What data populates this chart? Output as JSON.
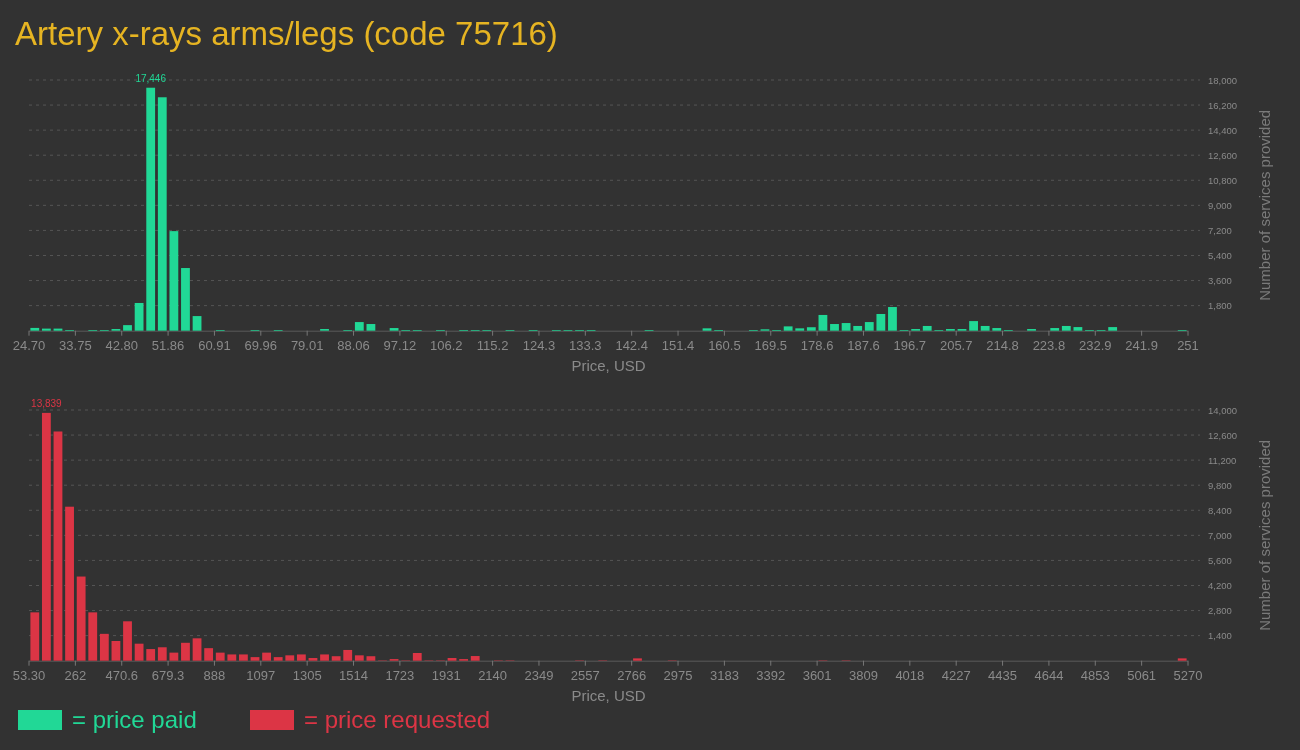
{
  "chart_data": [
    {
      "type": "histogram",
      "title": "Artery x-rays arms/legs (code 75716)",
      "xlabel": "Price, USD",
      "ylabel": "Number of services provided",
      "grid": "y",
      "legend": "bottom left",
      "series": [
        {
          "name": "= price paid",
          "color": "#21d896",
          "values": [
            200,
            150,
            150,
            50,
            0,
            50,
            50,
            120,
            400,
            1990,
            17446,
            16760,
            7150,
            4500,
            1050,
            0,
            50,
            0,
            0,
            50,
            0,
            50,
            0,
            0,
            0,
            120,
            0,
            50,
            620,
            480,
            0,
            190,
            50,
            50,
            0,
            50,
            0,
            50,
            50,
            50,
            0,
            50,
            0,
            50,
            0,
            50,
            50,
            50,
            50,
            0,
            0,
            0,
            0,
            50,
            0,
            0,
            0,
            0,
            170,
            50,
            0,
            0,
            50,
            100,
            50,
            310,
            170,
            250,
            1130,
            480,
            550,
            340,
            620,
            1200,
            1700,
            50,
            120,
            340,
            50,
            120,
            120,
            690,
            340,
            190,
            50,
            0,
            120,
            0,
            190,
            340,
            260,
            50,
            50,
            260,
            0,
            0,
            0,
            0,
            0,
            50
          ],
          "value_labels": [
            null,
            null,
            null,
            null,
            null,
            null,
            null,
            null,
            null,
            null,
            "17,446",
            null,
            null,
            null,
            null,
            null,
            null,
            null,
            null,
            null,
            null,
            null,
            null,
            null,
            null,
            null,
            null,
            null,
            null,
            null,
            null,
            null,
            null,
            null,
            null,
            null,
            null,
            null,
            null,
            null,
            null,
            null,
            null,
            null,
            null,
            null,
            null,
            null,
            null,
            null,
            null,
            null,
            null,
            null,
            null,
            null,
            null,
            null,
            null,
            null,
            null,
            null,
            null,
            null,
            null,
            null,
            null,
            null,
            null,
            null,
            null,
            null,
            null,
            null,
            null,
            null,
            null,
            null,
            null,
            null,
            null,
            null,
            null,
            null,
            null,
            null,
            null,
            null,
            null,
            null,
            null,
            null,
            null,
            null,
            null,
            null,
            null,
            null,
            null,
            null
          ]
        }
      ],
      "bins": [
        24.7,
        26.963,
        29.226,
        31.489,
        33.752,
        36.015,
        38.278,
        40.541,
        42.804,
        45.067,
        47.33,
        49.593,
        51.856,
        54.119,
        56.382,
        58.645,
        60.908,
        63.171,
        65.434,
        67.697,
        69.96,
        72.223,
        74.486,
        76.749,
        79.012,
        81.275,
        83.538,
        85.801,
        88.064,
        90.327,
        92.59,
        94.853,
        97.116,
        99.379,
        101.642,
        103.905,
        106.168,
        108.431,
        110.694,
        112.957,
        115.22,
        117.483,
        119.746,
        122.009,
        124.272,
        126.535,
        128.798,
        131.061,
        133.324,
        135.587,
        137.85,
        140.113,
        142.376,
        144.639,
        146.902,
        149.165,
        151.428,
        153.691,
        155.954,
        158.217,
        160.48,
        162.743,
        165.006,
        167.269,
        169.532,
        171.795,
        174.058,
        176.321,
        178.584,
        180.847,
        183.11,
        185.373,
        187.636,
        189.899,
        192.162,
        194.425,
        196.688,
        198.951,
        201.214,
        203.477,
        205.74,
        208.003,
        210.266,
        212.529,
        214.792,
        217.055,
        219.318,
        221.581,
        223.844,
        226.107,
        228.37,
        230.633,
        232.896,
        235.159,
        237.422,
        239.685,
        241.948,
        244.211,
        246.474,
        248.737,
        251
      ],
      "xlim": [
        24.7,
        251
      ],
      "xticks": [
        {
          "value": 24.7,
          "label": "24.70"
        },
        {
          "value": 33.752,
          "label": "33.75"
        },
        {
          "value": 42.804,
          "label": "42.80"
        },
        {
          "value": 51.856,
          "label": "51.86"
        },
        {
          "value": 60.908,
          "label": "60.91"
        },
        {
          "value": 69.96,
          "label": "69.96"
        },
        {
          "value": 79.012,
          "label": "79.01"
        },
        {
          "value": 88.064,
          "label": "88.06"
        },
        {
          "value": 97.116,
          "label": "97.12"
        },
        {
          "value": 106.168,
          "label": "106.2"
        },
        {
          "value": 115.22,
          "label": "115.2"
        },
        {
          "value": 124.272,
          "label": "124.3"
        },
        {
          "value": 133.324,
          "label": "133.3"
        },
        {
          "value": 142.376,
          "label": "142.4"
        },
        {
          "value": 151.428,
          "label": "151.4"
        },
        {
          "value": 160.48,
          "label": "160.5"
        },
        {
          "value": 169.532,
          "label": "169.5"
        },
        {
          "value": 178.584,
          "label": "178.6"
        },
        {
          "value": 187.636,
          "label": "187.6"
        },
        {
          "value": 196.688,
          "label": "196.7"
        },
        {
          "value": 205.74,
          "label": "205.7"
        },
        {
          "value": 214.792,
          "label": "214.8"
        },
        {
          "value": 223.844,
          "label": "223.8"
        },
        {
          "value": 232.896,
          "label": "232.9"
        },
        {
          "value": 241.948,
          "label": "241.9"
        },
        251
      ],
      "ylim": [
        0,
        18000
      ],
      "yticks": [
        {
          "value": 1800,
          "label": "1,800"
        },
        {
          "value": 3600,
          "label": "3,600"
        },
        {
          "value": 5400,
          "label": "5,400"
        },
        {
          "value": 7200,
          "label": "7,200"
        },
        {
          "value": 9000,
          "label": "9,000"
        },
        {
          "value": 10800,
          "label": "10,800"
        },
        {
          "value": 12600,
          "label": "12,600"
        },
        {
          "value": 14400,
          "label": "14,400"
        },
        {
          "value": 16200,
          "label": "16,200"
        },
        {
          "value": 18000,
          "label": "18,000"
        }
      ]
    },
    {
      "type": "histogram",
      "xlabel": "Price, USD",
      "ylabel": "Number of services provided",
      "grid": "y",
      "legend": "bottom left",
      "series": [
        {
          "name": "= price requested",
          "color": "#dc3545",
          "values": [
            2700,
            13839,
            12800,
            8600,
            4700,
            2700,
            1500,
            1100,
            2200,
            950,
            650,
            750,
            450,
            1000,
            1250,
            700,
            450,
            350,
            350,
            200,
            450,
            200,
            300,
            350,
            150,
            350,
            250,
            600,
            300,
            250,
            20,
            90,
            20,
            430,
            20,
            20,
            150,
            90,
            260,
            0,
            20,
            20,
            0,
            0,
            0,
            0,
            0,
            20,
            0,
            20,
            0,
            0,
            130,
            0,
            0,
            20,
            0,
            0,
            0,
            0,
            0,
            0,
            0,
            0,
            0,
            0,
            0,
            0,
            20,
            0,
            20,
            0,
            0,
            0,
            0,
            0,
            0,
            0,
            0,
            0,
            0,
            0,
            0,
            0,
            0,
            0,
            0,
            0,
            0,
            0,
            0,
            0,
            0,
            0,
            0,
            0,
            0,
            0,
            0,
            130
          ],
          "value_labels": [
            null,
            "13,839",
            null,
            null,
            null,
            null,
            null,
            null,
            null,
            null,
            null,
            null,
            null,
            null,
            null,
            null,
            null,
            null,
            null,
            null,
            null,
            null,
            null,
            null,
            null,
            null,
            null,
            null,
            null,
            null,
            null,
            null,
            null,
            null,
            null,
            null,
            null,
            null,
            null,
            null,
            null,
            null,
            null,
            null,
            null,
            null,
            null,
            null,
            null,
            null,
            null,
            null,
            null,
            null,
            null,
            null,
            null,
            null,
            null,
            null,
            null,
            null,
            null,
            null,
            null,
            null,
            null,
            null,
            null,
            null,
            null,
            null,
            null,
            null,
            null,
            null,
            null,
            null,
            null,
            null,
            null,
            null,
            null,
            null,
            null,
            null,
            null,
            null,
            null,
            null,
            null,
            null,
            null,
            null,
            null,
            null,
            null,
            null,
            null,
            null
          ]
        }
      ],
      "bins": [
        53.3,
        105.467,
        157.634,
        209.801,
        261.968,
        314.135,
        366.302,
        418.469,
        470.636,
        522.803,
        574.97,
        627.137,
        679.304,
        731.471,
        783.638,
        835.805,
        887.972,
        940.139,
        992.306,
        1044.473,
        1096.64,
        1148.807,
        1200.974,
        1253.141,
        1305.308,
        1357.475,
        1409.642,
        1461.809,
        1513.976,
        1566.143,
        1618.31,
        1670.477,
        1722.644,
        1774.811,
        1826.978,
        1879.145,
        1931.312,
        1983.479,
        2035.646,
        2087.813,
        2139.98,
        2192.147,
        2244.314,
        2296.481,
        2348.648,
        2400.815,
        2452.982,
        2505.149,
        2557.316,
        2609.483,
        2661.65,
        2713.817,
        2765.984,
        2818.151,
        2870.318,
        2922.485,
        2974.652,
        3026.819,
        3078.986,
        3131.153,
        3183.32,
        3235.487,
        3287.654,
        3339.821,
        3391.988,
        3444.155,
        3496.322,
        3548.489,
        3600.656,
        3652.823,
        3704.99,
        3757.157,
        3809.324,
        3861.491,
        3913.658,
        3965.825,
        4017.992,
        4070.159,
        4122.326,
        4174.493,
        4226.66,
        4278.827,
        4330.994,
        4383.161,
        4435.328,
        4487.495,
        4539.662,
        4591.829,
        4643.996,
        4696.163,
        4748.33,
        4800.497,
        4852.664,
        4904.831,
        4956.998,
        5009.165,
        5061.332,
        5113.499,
        5165.666,
        5217.833,
        5270
      ],
      "xlim": [
        53.3,
        5270
      ],
      "xticks": [
        {
          "value": 53.3,
          "label": "53.30"
        },
        {
          "value": 261.968,
          "label": "262"
        },
        {
          "value": 470.636,
          "label": "470.6"
        },
        {
          "value": 679.304,
          "label": "679.3"
        },
        {
          "value": 887.972,
          "label": "888"
        },
        {
          "value": 1096.64,
          "label": "1097"
        },
        {
          "value": 1305.308,
          "label": "1305"
        },
        {
          "value": 1513.976,
          "label": "1514"
        },
        {
          "value": 1722.644,
          "label": "1723"
        },
        {
          "value": 1931.312,
          "label": "1931"
        },
        {
          "value": 2139.98,
          "label": "2140"
        },
        {
          "value": 2348.648,
          "label": "2349"
        },
        {
          "value": 2557.316,
          "label": "2557"
        },
        {
          "value": 2765.984,
          "label": "2766"
        },
        {
          "value": 2974.652,
          "label": "2975"
        },
        {
          "value": 3183.32,
          "label": "3183"
        },
        {
          "value": 3391.988,
          "label": "3392"
        },
        {
          "value": 3600.656,
          "label": "3601"
        },
        {
          "value": 3809.324,
          "label": "3809"
        },
        {
          "value": 4017.992,
          "label": "4018"
        },
        {
          "value": 4226.66,
          "label": "4227"
        },
        {
          "value": 4435.328,
          "label": "4435"
        },
        {
          "value": 4643.996,
          "label": "4644"
        },
        {
          "value": 4852.664,
          "label": "4853"
        },
        {
          "value": 5061.332,
          "label": "5061"
        },
        5270
      ],
      "ylim": [
        0,
        14000
      ],
      "yticks": [
        {
          "value": 1400,
          "label": "1,400"
        },
        {
          "value": 2800,
          "label": "2,800"
        },
        {
          "value": 4200,
          "label": "4,200"
        },
        {
          "value": 5600,
          "label": "5,600"
        },
        {
          "value": 7000,
          "label": "7,000"
        },
        {
          "value": 8400,
          "label": "8,400"
        },
        {
          "value": 9800,
          "label": "9,800"
        },
        {
          "value": 11200,
          "label": "11,200"
        },
        {
          "value": 12600,
          "label": "12,600"
        },
        {
          "value": 14000,
          "label": "14,000"
        }
      ]
    }
  ]
}
